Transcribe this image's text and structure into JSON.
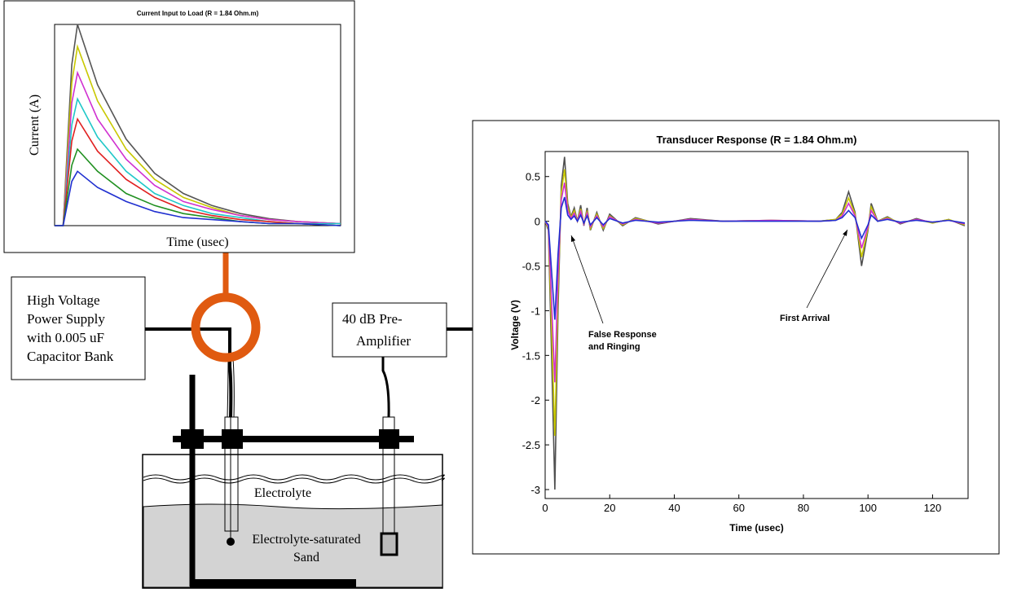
{
  "chart_data": [
    {
      "type": "line",
      "title": "Current Input to Load (R = 1.84 Ohm.m)",
      "x_label": "Time (usec)",
      "y_label": "Current (A)",
      "xlim": [
        0,
        100
      ],
      "ylim": [
        0,
        1
      ],
      "x": [
        0,
        3,
        6,
        8,
        15,
        25,
        35,
        45,
        55,
        65,
        75,
        85,
        100
      ],
      "series": [
        {
          "color": "#555555",
          "values": [
            0,
            0,
            0.8,
            1,
            0.7,
            0.43,
            0.26,
            0.16,
            0.1,
            0.06,
            0.035,
            0.02,
            0.01
          ]
        },
        {
          "color": "#c8c800",
          "values": [
            0,
            0,
            0.71,
            0.89,
            0.62,
            0.38,
            0.23,
            0.14,
            0.09,
            0.05,
            0.03,
            0.02,
            0.01
          ]
        },
        {
          "color": "#d030d0",
          "values": [
            0,
            0,
            0.61,
            0.76,
            0.53,
            0.33,
            0.2,
            0.12,
            0.08,
            0.05,
            0.03,
            0.02,
            0.01
          ]
        },
        {
          "color": "#20c8c8",
          "values": [
            0,
            0,
            0.5,
            0.63,
            0.44,
            0.27,
            0.16,
            0.1,
            0.06,
            0.04,
            0.02,
            0.01,
            0.01
          ]
        },
        {
          "color": "#e02020",
          "values": [
            0,
            0,
            0.42,
            0.53,
            0.37,
            0.23,
            0.14,
            0.08,
            0.05,
            0.03,
            0.02,
            0.01,
            0
          ]
        },
        {
          "color": "#209020",
          "values": [
            0,
            0,
            0.3,
            0.38,
            0.27,
            0.16,
            0.1,
            0.06,
            0.04,
            0.02,
            0.01,
            0.01,
            0
          ]
        },
        {
          "color": "#2030d0",
          "values": [
            0,
            0,
            0.22,
            0.27,
            0.19,
            0.12,
            0.07,
            0.04,
            0.03,
            0.02,
            0.01,
            0.01,
            0
          ]
        }
      ]
    },
    {
      "type": "line",
      "title": "Transducer Response (R = 1.84 Ohm.m)",
      "x_label": "Time (usec)",
      "y_label": "Voltage (V)",
      "xlim": [
        0,
        131
      ],
      "ylim": [
        -3.1,
        0.78
      ],
      "xticks": [
        0,
        20,
        40,
        60,
        80,
        100,
        120
      ],
      "yticks": [
        0.5,
        0,
        -0.5,
        -1,
        -1.5,
        -2,
        -2.5,
        -3
      ],
      "x": [
        0,
        1,
        2,
        3,
        4,
        5,
        6,
        7,
        8,
        9,
        10,
        11,
        12,
        13,
        14,
        16,
        18,
        20,
        24,
        28,
        35,
        45,
        55,
        70,
        85,
        90,
        92,
        94,
        96,
        98,
        100,
        101,
        103,
        106,
        110,
        115,
        120,
        125,
        130
      ],
      "series": [
        {
          "color": "#505050",
          "values": [
            0,
            -0.1,
            -1.5,
            -3.0,
            -1.0,
            0.4,
            0.72,
            0.2,
            0.05,
            0.15,
            0,
            0.18,
            -0.05,
            0.15,
            -0.1,
            0.1,
            -0.1,
            0.08,
            -0.05,
            0.04,
            -0.03,
            0.03,
            0,
            0.01,
            0,
            0.02,
            0.1,
            0.33,
            0.1,
            -0.5,
            -0.1,
            0.2,
            0,
            0.05,
            -0.03,
            0.03,
            -0.02,
            0.02,
            -0.05
          ]
        },
        {
          "color": "#c8c800",
          "values": [
            0,
            -0.08,
            -1.2,
            -2.4,
            -0.8,
            0.32,
            0.58,
            0.16,
            0.04,
            0.12,
            0,
            0.14,
            -0.04,
            0.12,
            -0.08,
            0.08,
            -0.08,
            0.06,
            -0.04,
            0.03,
            -0.02,
            0.02,
            0,
            0.01,
            0,
            0.02,
            0.08,
            0.26,
            0.08,
            -0.4,
            -0.08,
            0.16,
            0,
            0.04,
            -0.02,
            0.02,
            -0.02,
            0.02,
            -0.04
          ]
        },
        {
          "color": "#d030d0",
          "values": [
            0,
            -0.06,
            -0.9,
            -1.8,
            -0.6,
            0.24,
            0.43,
            0.12,
            0.03,
            0.09,
            0,
            0.11,
            -0.03,
            0.09,
            -0.06,
            0.06,
            -0.06,
            0.05,
            -0.03,
            0.02,
            -0.02,
            0.02,
            0,
            0.01,
            0,
            0.01,
            0.06,
            0.2,
            0.06,
            -0.3,
            -0.06,
            0.12,
            0,
            0.03,
            -0.02,
            0.02,
            -0.01,
            0.01,
            -0.03
          ]
        },
        {
          "color": "#2030d0",
          "values": [
            0,
            -0.04,
            -0.56,
            -1.1,
            -0.37,
            0.15,
            0.27,
            0.07,
            0.02,
            0.06,
            0,
            0.07,
            -0.02,
            0.06,
            -0.04,
            0.04,
            -0.04,
            0.03,
            -0.02,
            0.01,
            -0.01,
            0.01,
            0,
            0,
            0,
            0.01,
            0.04,
            0.12,
            0.04,
            -0.19,
            -0.04,
            0.07,
            0,
            0.02,
            -0.01,
            0.01,
            -0.01,
            0.01,
            -0.02
          ]
        }
      ],
      "annotations": [
        {
          "lines": [
            "False Response",
            "and Ringing"
          ]
        },
        {
          "lines": [
            "First Arrival"
          ]
        }
      ]
    }
  ],
  "diagram": {
    "power_supply": [
      "High Voltage",
      "Power Supply",
      "with 0.005 uF",
      "Capacitor Bank"
    ],
    "preamp": [
      "40 dB Pre-",
      "Amplifier"
    ],
    "electrolyte": "Electrolyte",
    "sand": [
      "Electrolyte-saturated",
      "Sand"
    ]
  }
}
